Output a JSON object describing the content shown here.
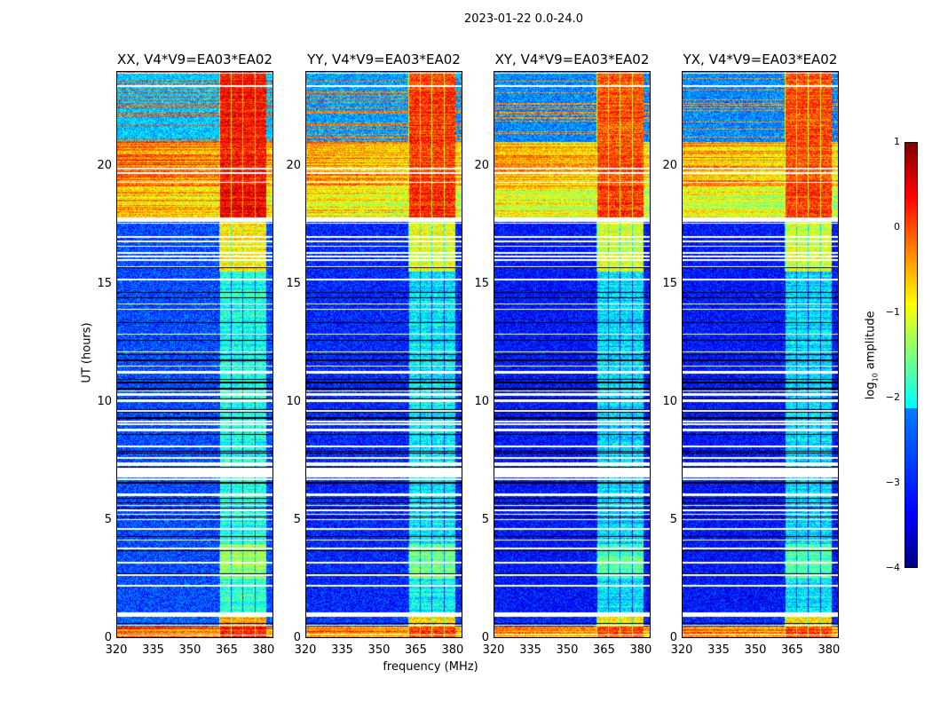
{
  "suptitle": "2023-01-22 0.0-24.0",
  "chart_data": {
    "type": "heatmap",
    "title": "2023-01-22 0.0-24.0",
    "xlabel": "frequency (MHz)",
    "ylabel": "UT (hours)",
    "xlim": [
      320,
      384
    ],
    "ylim": [
      0,
      24
    ],
    "xticks": [
      "320",
      "335",
      "350",
      "365",
      "380"
    ],
    "yticks": [
      "0",
      "5",
      "10",
      "15",
      "20"
    ],
    "panels": [
      {
        "title": "XX, V4*V9=EA03*EA02",
        "scale": 0
      },
      {
        "title": "YY, V4*V9=EA03*EA02",
        "scale": -0.2
      },
      {
        "title": "XY, V4*V9=EA03*EA02",
        "scale": -0.3
      },
      {
        "title": "YX, V4*V9=EA03*EA02",
        "scale": -0.3
      }
    ],
    "rfi_band_MHz": [
      362,
      381
    ],
    "time_segments": [
      {
        "t": [
          0,
          0.5
        ],
        "low": 0.0,
        "high": 0.3
      },
      {
        "t": [
          0.5,
          0.9
        ],
        "low": -2.9,
        "high": -0.5
      },
      {
        "t": [
          0.9,
          1.1
        ],
        "flagged": true
      },
      {
        "t": [
          1.1,
          2.5
        ],
        "low": -3,
        "high": -1.9
      },
      {
        "t": [
          2.5,
          4.0
        ],
        "low": -3,
        "high": -1.4
      },
      {
        "t": [
          4.0,
          6.8
        ],
        "low": -3,
        "high": -2
      },
      {
        "t": [
          6.8,
          7.2
        ],
        "flagged": true
      },
      {
        "t": [
          7.2,
          15.5
        ],
        "low": -3,
        "high": -2
      },
      {
        "t": [
          15.5,
          17.6
        ],
        "low": -3,
        "high": -0.8
      },
      {
        "t": [
          17.6,
          17.8
        ],
        "flagged": true
      },
      {
        "t": [
          17.8,
          19.1
        ],
        "low": -0.6,
        "high": 0.4
      },
      {
        "t": [
          19.1,
          21.0
        ],
        "low": -0.1,
        "high": 0.3
      },
      {
        "t": [
          21.0,
          24.0
        ],
        "low": -2.4,
        "high": 0.3
      }
    ],
    "colorbar": {
      "label": "log10 amplitude",
      "range": [
        -4,
        1
      ],
      "ticks": [
        "1",
        "0",
        "−1",
        "−2",
        "−3",
        "−4"
      ],
      "colormap": "jet"
    }
  }
}
